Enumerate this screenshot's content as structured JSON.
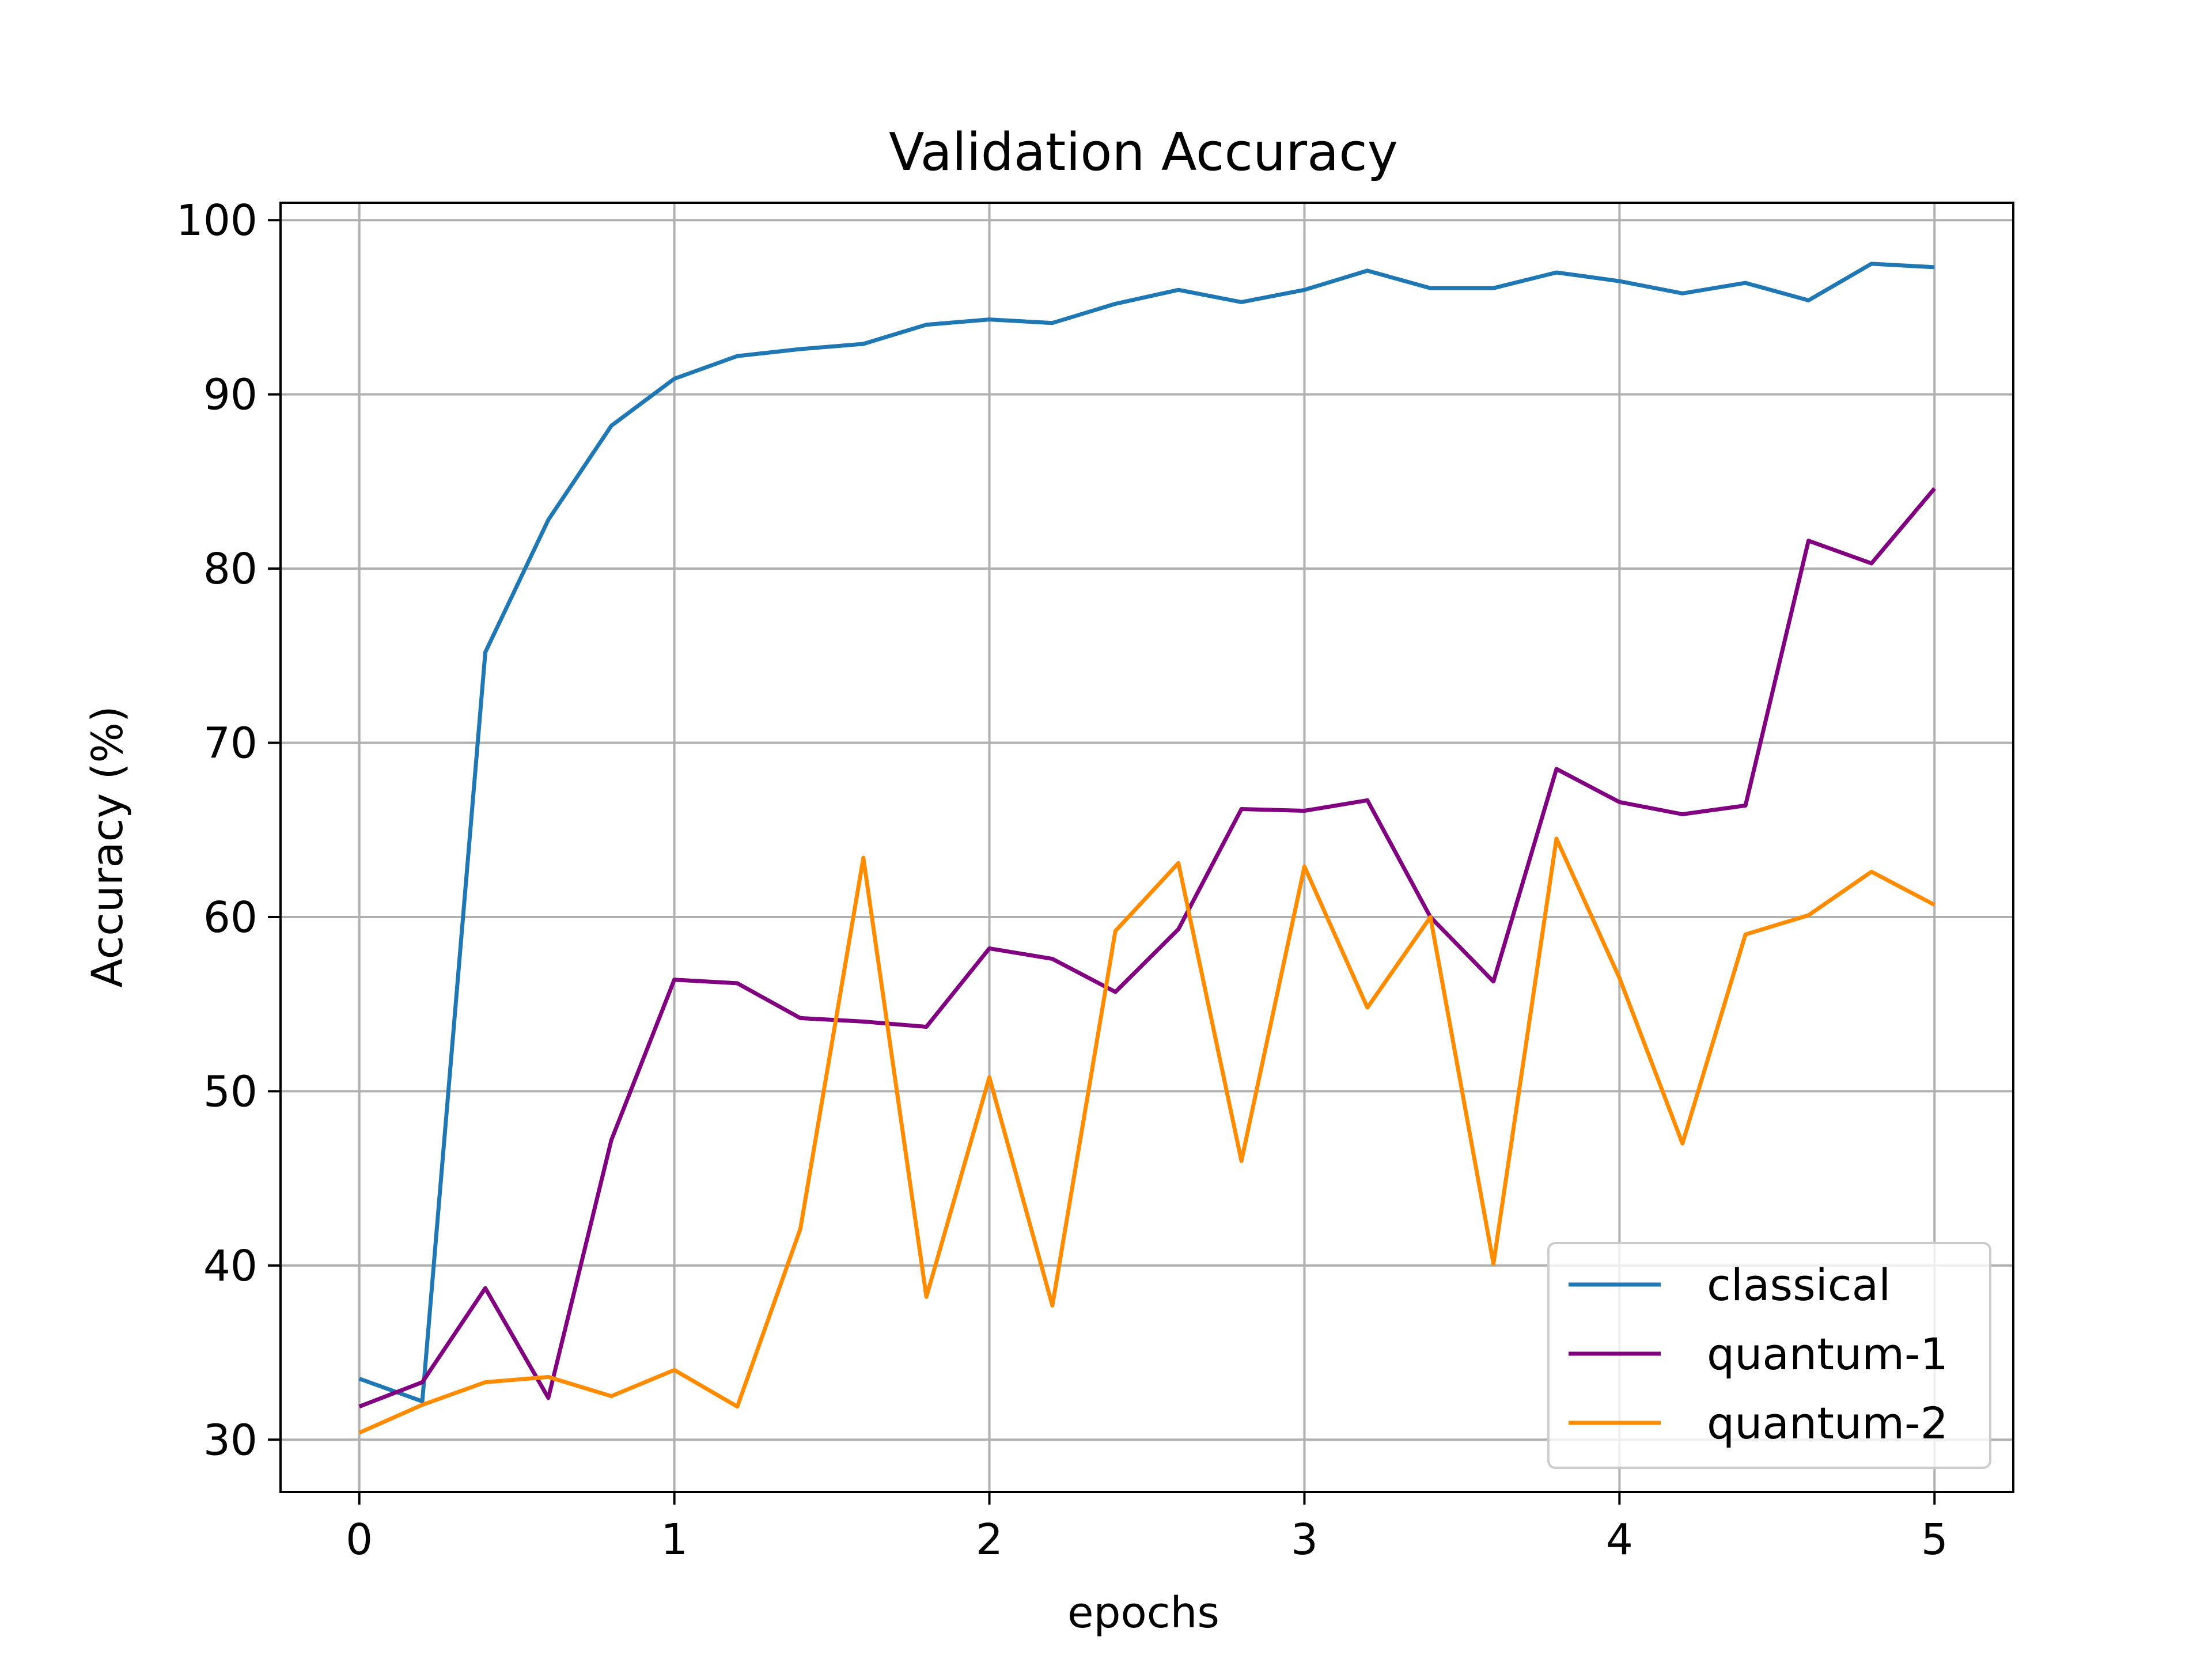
{
  "chart_data": {
    "type": "line",
    "title": "Validation Accuracy",
    "xlabel": "epochs",
    "ylabel": "Accuracy (%)",
    "xlim": [
      -0.25,
      5.25
    ],
    "ylim": [
      27,
      101
    ],
    "xticks": [
      0,
      1,
      2,
      3,
      4,
      5
    ],
    "yticks": [
      30,
      40,
      50,
      60,
      70,
      80,
      90,
      100
    ],
    "grid": true,
    "legend_position": "lower right",
    "x": [
      0,
      0.2,
      0.4,
      0.6,
      0.8,
      1.0,
      1.2,
      1.4,
      1.6,
      1.8,
      2.0,
      2.2,
      2.4,
      2.6,
      2.8,
      3.0,
      3.2,
      3.4,
      3.6,
      3.8,
      4.0,
      4.2,
      4.4,
      4.6,
      4.8,
      5.0
    ],
    "series": [
      {
        "name": "classical",
        "color": "#1f77b4",
        "values": [
          33.5,
          32.2,
          75.2,
          82.8,
          88.2,
          90.9,
          92.2,
          92.6,
          92.9,
          94.0,
          94.3,
          94.1,
          95.2,
          96.0,
          95.3,
          96.0,
          97.1,
          96.1,
          96.1,
          97.0,
          96.5,
          95.8,
          96.4,
          95.4,
          97.5,
          97.3
        ]
      },
      {
        "name": "quantum-1",
        "color": "#800080",
        "values": [
          31.9,
          33.3,
          38.7,
          32.4,
          47.2,
          56.4,
          56.2,
          54.2,
          54.0,
          53.7,
          58.2,
          57.6,
          55.7,
          59.3,
          66.2,
          66.1,
          66.7,
          60.0,
          56.3,
          68.5,
          66.6,
          65.9,
          66.4,
          81.6,
          80.3,
          84.6
        ]
      },
      {
        "name": "quantum-2",
        "color": "#ff8c00",
        "values": [
          30.4,
          32.0,
          33.3,
          33.6,
          32.5,
          34.0,
          31.9,
          42.1,
          63.4,
          38.2,
          50.8,
          37.7,
          59.2,
          63.1,
          46.0,
          62.9,
          54.8,
          60.0,
          40.1,
          64.5,
          56.5,
          47.0,
          59.0,
          60.1,
          62.6,
          60.7
        ]
      }
    ]
  }
}
